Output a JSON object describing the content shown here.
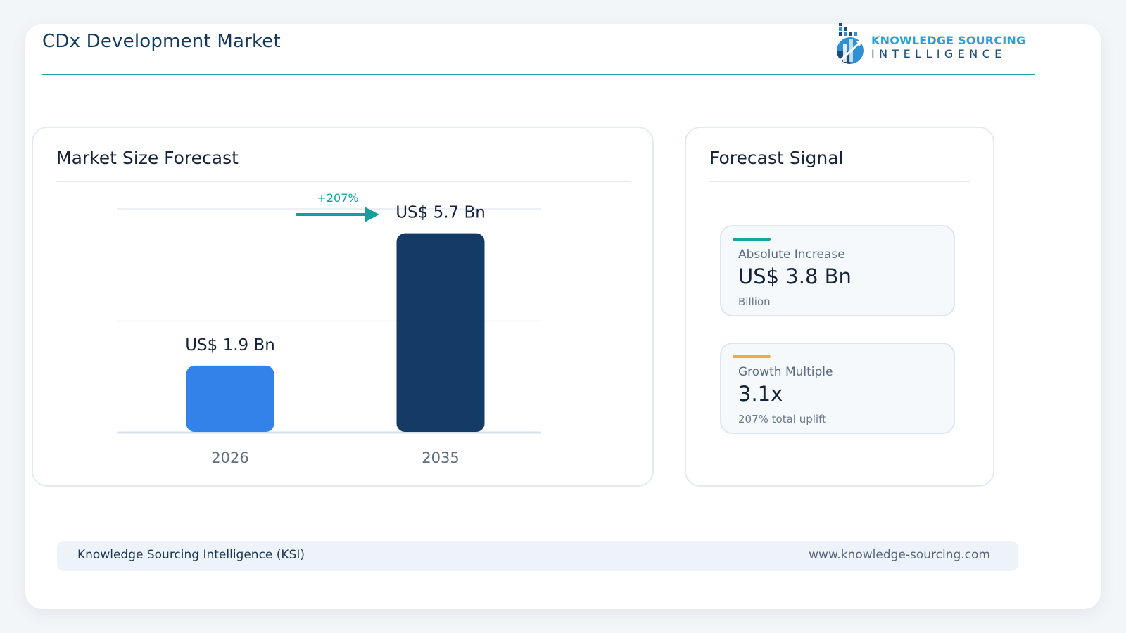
{
  "header": {
    "title": "CDx Development Market",
    "logo_line1": "KNOWLEDGE SOURCING",
    "logo_line2": "INTELLIGENCE"
  },
  "market_panel": {
    "title": "Market Size Forecast"
  },
  "signal_panel": {
    "title": "Forecast Signal",
    "metrics": [
      {
        "label": "Absolute Increase",
        "value": "US$ 3.8 Bn",
        "note": "Billion",
        "accent_color": "#17a5a3"
      },
      {
        "label": "Growth Multiple",
        "value": "3.1x",
        "note": "207% total uplift",
        "accent_color": "#f0a94a"
      }
    ]
  },
  "footer": {
    "left": "Knowledge Sourcing Intelligence (KSI)",
    "right": "www.knowledge-sourcing.com"
  },
  "chart_data": {
    "type": "bar",
    "categories": [
      "2026",
      "2035"
    ],
    "values": [
      1.9,
      5.7
    ],
    "value_labels": [
      "US$ 1.9 Bn",
      "US$ 5.7 Bn"
    ],
    "colors": [
      "#3282ea",
      "#133b65"
    ],
    "growth_label": "+207%",
    "title": "",
    "xlabel": "",
    "ylabel": "",
    "ylim": [
      0,
      6.4
    ],
    "grid": true
  },
  "colors": {
    "teal": "#1aa3a0",
    "navy": "#133b65",
    "blue": "#3282ea"
  }
}
